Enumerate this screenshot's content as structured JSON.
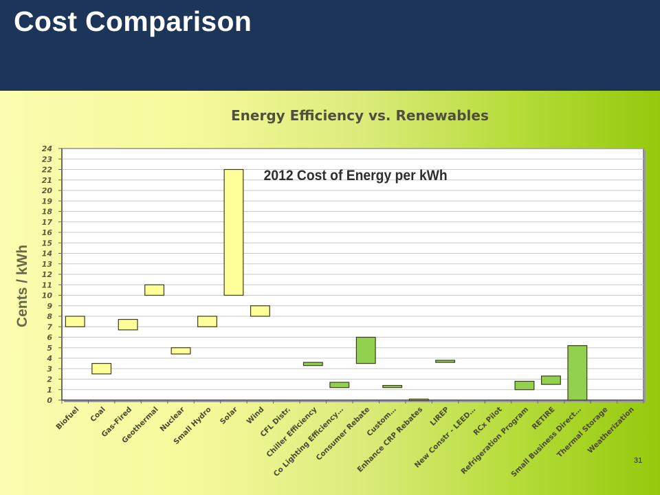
{
  "slide": {
    "title": "Cost Comparison",
    "page_number": "31"
  },
  "colors": {
    "header": "#1c3558",
    "renewable_fill": "#ffff99",
    "efficiency_fill": "#92d050",
    "box_stroke": "#3a3a1a"
  },
  "chart_data": {
    "type": "bar",
    "subtype": "floating-range",
    "title": "Energy Efficiency vs. Renewables",
    "subtitle": "2012 Cost of Energy per kWh",
    "ylabel": "Cents / kWh",
    "xlabel": "",
    "ylim": [
      0,
      24
    ],
    "yticks": [
      0,
      1,
      2,
      3,
      4,
      5,
      6,
      7,
      8,
      9,
      10,
      11,
      12,
      13,
      14,
      15,
      16,
      17,
      18,
      19,
      20,
      21,
      22,
      23,
      24
    ],
    "grid": true,
    "legend": "none",
    "categories": [
      "Biofuel",
      "Coal",
      "Gas-Fired",
      "Geothermal",
      "Nuclear",
      "Small Hydro",
      "Solar",
      "Wind",
      "CFL Distr.",
      "Chiller Efficiency",
      "Co Lighting Efficiency…",
      "Consumer Rebate",
      "Custom…",
      "Enhance CRP Rebates",
      "LIREP",
      "New Constr - LEED…",
      "RCx Pilot",
      "Refrigeration Program",
      "RETIRE",
      "Small Business Direct…",
      "Thermal Storage",
      "Weatherization"
    ],
    "groups": [
      "renewable",
      "renewable",
      "renewable",
      "renewable",
      "renewable",
      "renewable",
      "renewable",
      "renewable",
      "efficiency",
      "efficiency",
      "efficiency",
      "efficiency",
      "efficiency",
      "efficiency",
      "efficiency",
      "efficiency",
      "efficiency",
      "efficiency",
      "efficiency",
      "efficiency",
      "efficiency",
      "efficiency"
    ],
    "ranges": [
      [
        7.0,
        8.0
      ],
      [
        2.5,
        3.5
      ],
      [
        6.7,
        7.7
      ],
      [
        10.0,
        11.0
      ],
      [
        4.4,
        5.0
      ],
      [
        7.0,
        8.0
      ],
      [
        10.0,
        22.0
      ],
      [
        8.0,
        9.0
      ],
      null,
      [
        3.3,
        3.6
      ],
      [
        1.2,
        1.7
      ],
      [
        3.5,
        6.0
      ],
      [
        1.2,
        1.4
      ],
      [
        0.0,
        0.1
      ],
      [
        3.6,
        3.8
      ],
      null,
      null,
      [
        1.0,
        1.8
      ],
      [
        1.5,
        2.3
      ],
      [
        0.0,
        5.2
      ],
      null,
      null
    ]
  }
}
